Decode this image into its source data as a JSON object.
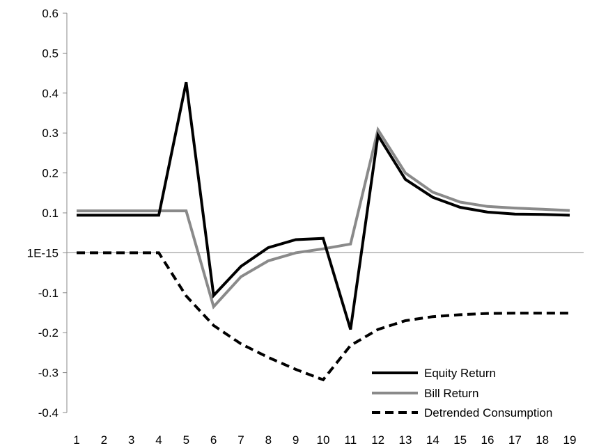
{
  "chart_data": {
    "type": "line",
    "title": "",
    "xlabel": "",
    "ylabel": "",
    "x": [
      1,
      2,
      3,
      4,
      5,
      6,
      7,
      8,
      9,
      10,
      11,
      12,
      13,
      14,
      15,
      16,
      17,
      18,
      19
    ],
    "ylim": [
      -0.4,
      0.6
    ],
    "yticks": [
      -0.4,
      -0.3,
      -0.2,
      -0.1,
      0,
      0.1,
      0.2,
      0.3,
      0.4,
      0.5,
      0.6
    ],
    "ytick_labels": [
      "-0.4",
      "-0.3",
      "-0.2",
      "-0.1",
      "1E-15",
      "0.1",
      "0.2",
      "0.3",
      "0.4",
      "0.5",
      "0.6"
    ],
    "xtick_labels": [
      "1",
      "2",
      "3",
      "4",
      "5",
      "6",
      "7",
      "8",
      "9",
      "10",
      "11",
      "12",
      "13",
      "14",
      "15",
      "16",
      "17",
      "18",
      "19"
    ],
    "grid": false,
    "legend_position": "bottom-right",
    "series": [
      {
        "name": "Equity Return",
        "color": "#000000",
        "style": "solid",
        "values": [
          0.094,
          0.094,
          0.094,
          0.094,
          0.427,
          -0.107,
          -0.034,
          0.013,
          0.033,
          0.036,
          -0.192,
          0.294,
          0.184,
          0.139,
          0.114,
          0.102,
          0.097,
          0.096,
          0.094
        ]
      },
      {
        "name": "Bill Return",
        "color": "#8a8a8a",
        "style": "solid",
        "values": [
          0.105,
          0.105,
          0.105,
          0.105,
          0.105,
          -0.135,
          -0.06,
          -0.02,
          0.0,
          0.01,
          0.022,
          0.308,
          0.2,
          0.152,
          0.127,
          0.116,
          0.112,
          0.109,
          0.106
        ]
      },
      {
        "name": "Detrended Consumption",
        "color": "#000000",
        "style": "dashed",
        "values": [
          0.0,
          0.0,
          0.0,
          0.0,
          -0.108,
          -0.182,
          -0.228,
          -0.262,
          -0.292,
          -0.318,
          -0.232,
          -0.192,
          -0.17,
          -0.16,
          -0.155,
          -0.152,
          -0.151,
          -0.151,
          -0.151
        ]
      }
    ]
  }
}
